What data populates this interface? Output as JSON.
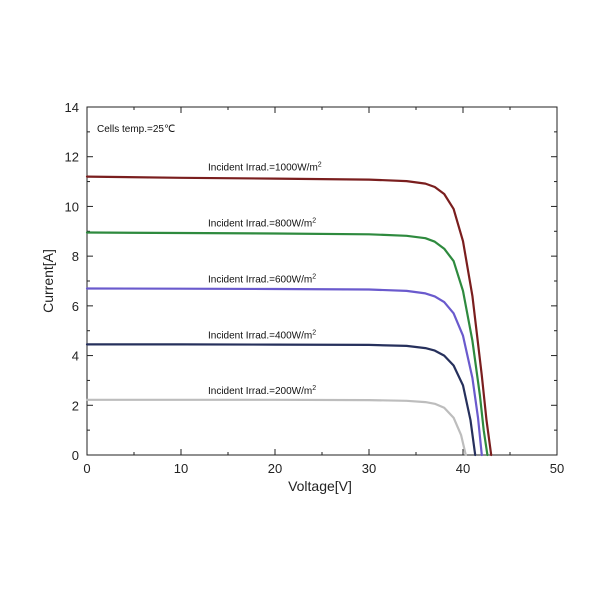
{
  "chart_data": {
    "type": "line",
    "title": "",
    "xlabel": "Voltage[V]",
    "ylabel": "Current[A]",
    "xlim": [
      0,
      50
    ],
    "ylim": [
      0,
      14
    ],
    "xticks": [
      0,
      10,
      20,
      30,
      40,
      50
    ],
    "yticks": [
      0,
      2,
      4,
      6,
      8,
      10,
      12,
      14
    ],
    "grid": false,
    "annotation": "Cells temp.=25℃",
    "series": [
      {
        "label_text": "Incident Irrad.=1000W/m",
        "label_sup": "2",
        "color": "#7a1e1e",
        "x": [
          0,
          10,
          20,
          30,
          34,
          36,
          37,
          38,
          39,
          40,
          41,
          42,
          42.5,
          43.0
        ],
        "y": [
          11.2,
          11.15,
          11.12,
          11.08,
          11.02,
          10.92,
          10.78,
          10.5,
          9.9,
          8.6,
          6.4,
          3.2,
          1.4,
          0
        ]
      },
      {
        "label_text": "Incident Irrad.=800W/m",
        "label_sup": "2",
        "color": "#2e8a3e",
        "x": [
          0,
          10,
          20,
          30,
          34,
          36,
          37,
          38,
          39,
          40,
          41,
          41.8,
          42.2,
          42.6
        ],
        "y": [
          8.95,
          8.93,
          8.91,
          8.88,
          8.82,
          8.72,
          8.58,
          8.3,
          7.8,
          6.6,
          4.6,
          2.4,
          1.0,
          0
        ]
      },
      {
        "label_text": "Incident Irrad.=600W/m",
        "label_sup": "2",
        "color": "#6a5acd",
        "x": [
          0,
          10,
          20,
          30,
          34,
          36,
          37,
          38,
          39,
          40,
          41,
          41.6,
          42.0
        ],
        "y": [
          6.7,
          6.69,
          6.68,
          6.66,
          6.6,
          6.5,
          6.38,
          6.15,
          5.7,
          4.8,
          3.1,
          1.5,
          0
        ]
      },
      {
        "label_text": "Incident Irrad.=400W/m",
        "label_sup": "2",
        "color": "#26305c",
        "x": [
          0,
          10,
          20,
          30,
          34,
          36,
          37,
          38,
          39,
          40,
          40.8,
          41.3
        ],
        "y": [
          4.45,
          4.45,
          4.44,
          4.43,
          4.39,
          4.3,
          4.2,
          4.0,
          3.6,
          2.8,
          1.4,
          0
        ]
      },
      {
        "label_text": "Incident Irrad.=200W/m",
        "label_sup": "2",
        "color": "#bdbdbd",
        "x": [
          0,
          10,
          20,
          30,
          34,
          36,
          37,
          38,
          39,
          39.8,
          40.3
        ],
        "y": [
          2.22,
          2.22,
          2.22,
          2.21,
          2.18,
          2.13,
          2.06,
          1.9,
          1.5,
          0.8,
          0
        ]
      }
    ]
  }
}
